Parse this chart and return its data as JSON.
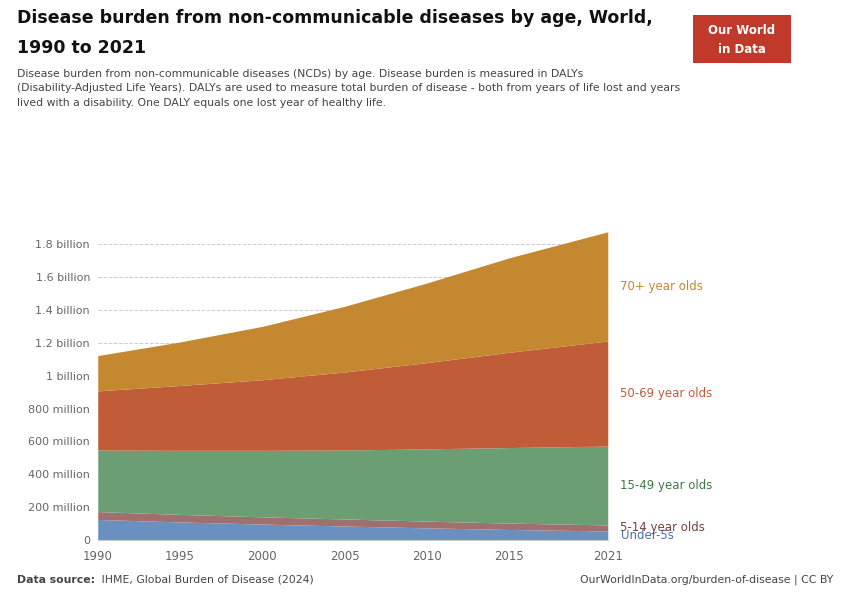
{
  "title_line1": "Disease burden from non-communicable diseases by age, World,",
  "title_line2": "1990 to 2021",
  "subtitle": "Disease burden from non-communicable diseases (NCDs) by age. Disease burden is measured in DALYs\n(Disability-Adjusted Life Years). DALYs are used to measure total burden of disease - both from years of life lost and years\nlived with a disability. One DALY equals one lost year of healthy life.",
  "source_left": "Data source: IHME, Global Burden of Disease (2024)",
  "source_bold": "Data source:",
  "source_right": "OurWorldInData.org/burden-of-disease | CC BY",
  "years": [
    1990,
    1995,
    2000,
    2005,
    2010,
    2015,
    2021
  ],
  "series": [
    {
      "name": "Under-5s",
      "color": "#6B8FBF",
      "label_color": "#4A70A8",
      "values": [
        125000000,
        110000000,
        97000000,
        85000000,
        74000000,
        64000000,
        55000000
      ]
    },
    {
      "name": "5-14 year olds",
      "color": "#A07070",
      "label_color": "#7A4040",
      "values": [
        48000000,
        46000000,
        44000000,
        43000000,
        41000000,
        39000000,
        37000000
      ]
    },
    {
      "name": "15-49 year olds",
      "color": "#6B9E72",
      "label_color": "#3D7A44",
      "values": [
        375000000,
        390000000,
        405000000,
        420000000,
        440000000,
        460000000,
        480000000
      ]
    },
    {
      "name": "50-69 year olds",
      "color": "#C05C38",
      "label_color": "#C05C38",
      "values": [
        360000000,
        395000000,
        430000000,
        475000000,
        525000000,
        580000000,
        640000000
      ]
    },
    {
      "name": "70+ year olds",
      "color": "#C48830",
      "label_color": "#C48830",
      "values": [
        215000000,
        265000000,
        325000000,
        400000000,
        485000000,
        575000000,
        665000000
      ]
    }
  ],
  "ylim": [
    0,
    1900000000
  ],
  "ytick_values": [
    0,
    200000000,
    400000000,
    600000000,
    800000000,
    1000000000,
    1200000000,
    1400000000,
    1600000000,
    1800000000
  ],
  "ytick_labels": [
    "0",
    "200 million",
    "400 million",
    "600 million",
    "800 million",
    "1 billion",
    "1.2 billion",
    "1.4 billion",
    "1.6 billion",
    "1.8 billion"
  ],
  "background_color": "#FFFFFF",
  "grid_color": "#CCCCCC",
  "tick_color": "#666666",
  "owid_bg": "#C0392B",
  "owid_text": "#FFFFFF"
}
